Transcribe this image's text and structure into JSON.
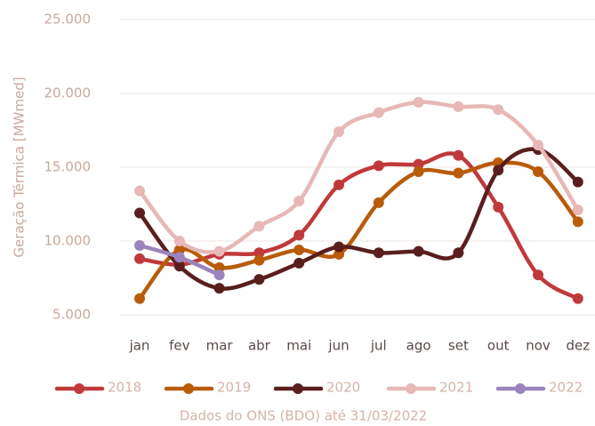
{
  "chart_data": {
    "type": "line",
    "y_label": "Geração Térmica [MWmed]",
    "footnote": "Dados do ONS (BDO) até 31/03/2022",
    "categories": [
      "jan",
      "fev",
      "mar",
      "abr",
      "mai",
      "jun",
      "jul",
      "ago",
      "set",
      "out",
      "nov",
      "dez"
    ],
    "series": [
      {
        "name": "2018",
        "color": "#c0393b",
        "values": [
          8800,
          8400,
          9100,
          9200,
          10400,
          13800,
          15100,
          15200,
          15800,
          12300,
          7700,
          6100
        ]
      },
      {
        "name": "2019",
        "color": "#b85c0a",
        "values": [
          6100,
          9400,
          8200,
          8700,
          9400,
          9100,
          12600,
          14700,
          14600,
          15300,
          14700,
          11300
        ]
      },
      {
        "name": "2020",
        "color": "#5a1e1e",
        "values": [
          11900,
          8300,
          6800,
          7400,
          8500,
          9600,
          9200,
          9300,
          9200,
          14800,
          16200,
          14000
        ]
      },
      {
        "name": "2021",
        "color": "#e8b7b7",
        "values": [
          13400,
          10000,
          9300,
          11000,
          12700,
          17400,
          18700,
          19400,
          19100,
          18900,
          16500,
          12100
        ]
      },
      {
        "name": "2022",
        "color": "#9b84bd",
        "values": [
          9700,
          8900,
          7700,
          null,
          null,
          null,
          null,
          null,
          null,
          null,
          null,
          null
        ]
      }
    ],
    "ylim": [
      5000,
      25000
    ],
    "yticks": [
      {
        "value": 5000,
        "label": "5.000"
      },
      {
        "value": 10000,
        "label": "10.000"
      },
      {
        "value": 15000,
        "label": "15.000"
      },
      {
        "value": 20000,
        "label": "20.000"
      },
      {
        "value": 25000,
        "label": "25.000"
      }
    ],
    "grid": true
  }
}
